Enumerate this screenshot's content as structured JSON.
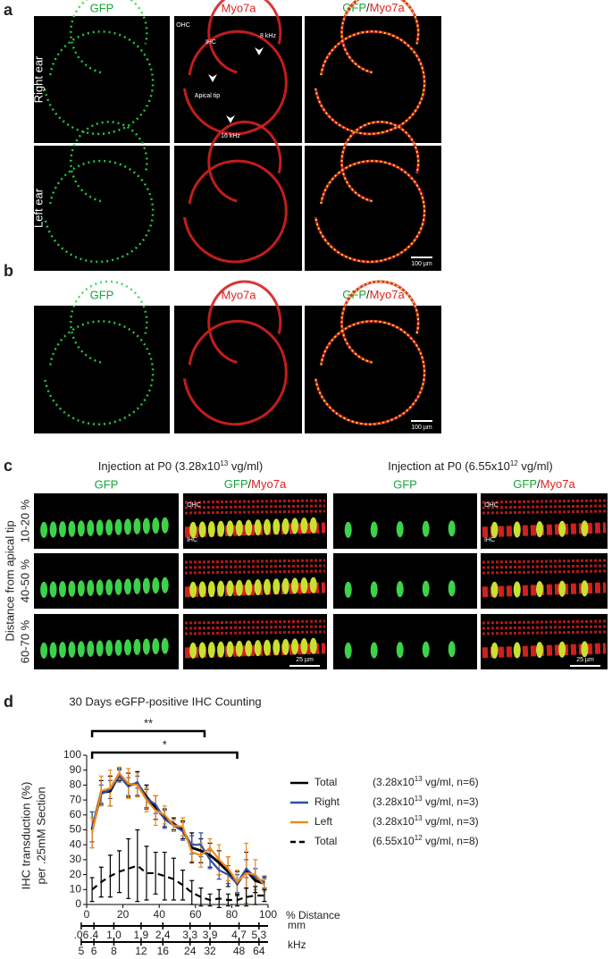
{
  "panel_a": {
    "label": "a",
    "headers": {
      "gfp": "GFP",
      "myo": "Myo7a",
      "merge": {
        "a": "GFP",
        "sep": "/",
        "b": "Myo7a"
      }
    },
    "rows": [
      "Right ear",
      "Left ear"
    ],
    "annotations": {
      "ohc": "OHC",
      "ihc": "IHC",
      "khz8": "8 kHz",
      "apical": "Apical tip",
      "khz16": "16 kHz"
    },
    "scale": "100 µm"
  },
  "panel_b": {
    "label": "b",
    "headers": {
      "gfp": "GFP",
      "myo": "Myo7a",
      "merge": {
        "a": "GFP",
        "sep": "/",
        "b": "Myo7a"
      }
    },
    "scale": "100 µm"
  },
  "panel_c": {
    "label": "c",
    "groups": [
      {
        "title": {
          "pre": "Injection at P0 (3.28x10",
          "sup": "13",
          "post": " vg/ml)"
        },
        "gfp": "GFP",
        "merge": {
          "a": "GFP",
          "sep": "/",
          "b": "Myo7a"
        },
        "ohc": "OHC",
        "ihc": "IHC",
        "scale": "25 µm"
      },
      {
        "title": {
          "pre": "Injection at P0 (6.55x10",
          "sup": "12",
          "post": " vg/ml)"
        },
        "gfp": "GFP",
        "merge": {
          "a": "GFP",
          "sep": "/",
          "b": "Myo7a"
        },
        "ohc": "OHC",
        "ihc": "IHC",
        "scale": "25 µm"
      }
    ],
    "rows": [
      "10-20 %",
      "40-50 %",
      "60-70 %"
    ],
    "axis_label": "Distance from apical tip"
  },
  "panel_d": {
    "label": "d"
  },
  "chart_data": {
    "type": "line",
    "title": "30 Days eGFP-positive IHC Counting",
    "x_label": "% Distance",
    "y_label": [
      "IHC transduction (%)",
      "per .25mM Section"
    ],
    "x": [
      3,
      8,
      13,
      18,
      23,
      28,
      33,
      38,
      43,
      48,
      53,
      58,
      63,
      68,
      73,
      78,
      83,
      88,
      93,
      98
    ],
    "series": [
      {
        "name": "Total",
        "detail": {
          "pre": "(3.28x10",
          "sup": "13",
          "post": " vg/ml, n=6)"
        },
        "color": "#000000",
        "dash": false,
        "values": [
          50,
          75,
          76,
          87,
          80,
          81,
          72,
          65,
          58,
          54,
          50,
          38,
          36,
          33,
          28,
          22,
          14,
          23,
          16,
          14
        ],
        "errors": [
          12,
          8,
          10,
          4,
          8,
          8,
          8,
          8,
          6,
          4,
          6,
          10,
          8,
          8,
          8,
          10,
          8,
          12,
          8,
          4
        ]
      },
      {
        "name": "Right",
        "detail": {
          "pre": "(3.28x10",
          "sup": "13",
          "post": " vg/ml, n=3)"
        },
        "color": "#2f4fa8",
        "dash": false,
        "values": [
          52,
          74,
          77,
          86,
          79,
          82,
          71,
          67,
          57,
          53,
          49,
          40,
          40,
          30,
          23,
          20,
          14,
          24,
          18,
          15
        ],
        "errors": [
          10,
          6,
          6,
          4,
          6,
          4,
          6,
          6,
          6,
          4,
          6,
          6,
          8,
          6,
          6,
          6,
          6,
          6,
          6,
          4
        ]
      },
      {
        "name": "Left",
        "detail": {
          "pre": "(3.28x10",
          "sup": "13",
          "post": " vg/ml, n=3)"
        },
        "color": "#f08a1c",
        "dash": false,
        "values": [
          48,
          76,
          78,
          88,
          81,
          80,
          70,
          63,
          60,
          53,
          52,
          35,
          33,
          38,
          30,
          24,
          15,
          21,
          20,
          13
        ],
        "errors": [
          10,
          10,
          12,
          4,
          10,
          8,
          8,
          10,
          6,
          4,
          6,
          6,
          8,
          6,
          10,
          8,
          8,
          20,
          10,
          4
        ]
      },
      {
        "name": "Total",
        "detail": {
          "pre": "(6.55x10",
          "sup": "12",
          "post": " vg/ml, n=8)"
        },
        "color": "#000000",
        "dash": true,
        "values": [
          10,
          15,
          19,
          22,
          24,
          26,
          21,
          21,
          19,
          17,
          13,
          8,
          5,
          3,
          4,
          3,
          3,
          5,
          6,
          6
        ],
        "errors": [
          8,
          10,
          14,
          14,
          20,
          24,
          18,
          14,
          16,
          14,
          10,
          8,
          6,
          4,
          6,
          4,
          4,
          6,
          6,
          4
        ]
      }
    ],
    "xlim": [
      0,
      100
    ],
    "xticks": [
      0,
      20,
      40,
      60,
      80,
      100
    ],
    "ylim": [
      0,
      100
    ],
    "yticks": [
      0,
      10,
      20,
      30,
      40,
      50,
      60,
      70,
      80,
      90,
      100
    ],
    "brackets": [
      {
        "label": "**",
        "from": 3,
        "to": 65
      },
      {
        "label": "*",
        "from": 3,
        "to": 83
      }
    ],
    "extra_axes": [
      {
        "label": "mm",
        "ticks": [
          {
            "value": -3,
            "label": ".06"
          },
          {
            "value": 4,
            "label": ".4"
          },
          {
            "value": 15,
            "label": "1.0"
          },
          {
            "value": 30,
            "label": "1.9"
          },
          {
            "value": 42,
            "label": "2.4"
          },
          {
            "value": 57,
            "label": "3.3"
          },
          {
            "value": 68,
            "label": "3.9"
          },
          {
            "value": 84,
            "label": "4.7"
          },
          {
            "value": 95,
            "label": "5.3"
          }
        ]
      },
      {
        "label": "kHz",
        "ticks": [
          {
            "value": -3,
            "label": "5"
          },
          {
            "value": 4,
            "label": "6"
          },
          {
            "value": 15,
            "label": "8"
          },
          {
            "value": 30,
            "label": "12"
          },
          {
            "value": 42,
            "label": "16"
          },
          {
            "value": 57,
            "label": "24"
          },
          {
            "value": 68,
            "label": "32"
          },
          {
            "value": 84,
            "label": "48"
          },
          {
            "value": 95,
            "label": "64"
          }
        ]
      }
    ]
  }
}
